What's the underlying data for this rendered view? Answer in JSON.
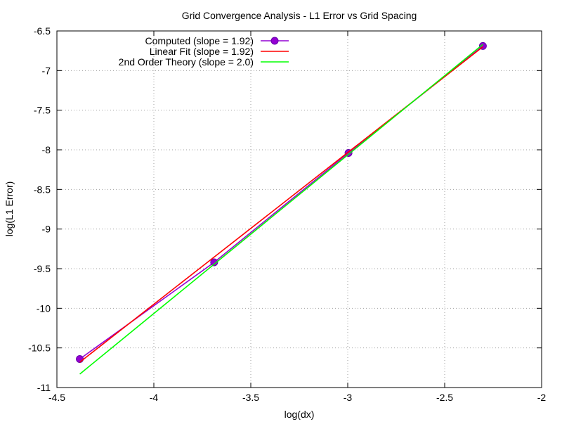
{
  "chart_data": {
    "type": "line",
    "title": "Grid Convergence Analysis - L1 Error vs Grid Spacing",
    "xlabel": "log(dx)",
    "ylabel": "log(L1 Error)",
    "xlim": [
      -4.5,
      -2
    ],
    "ylim": [
      -11,
      -6.5
    ],
    "xticks": [
      -4.5,
      -4,
      -3.5,
      -3,
      -2.5,
      -2
    ],
    "xtick_labels": [
      "-4.5",
      "-4",
      "-3.5",
      "-3",
      "-2.5",
      "-2"
    ],
    "yticks": [
      -11,
      -10.5,
      -10,
      -9.5,
      -9,
      -8.5,
      -8,
      -7.5,
      -7,
      -6.5
    ],
    "ytick_labels": [
      "-11",
      "-10.5",
      "-10",
      "-9.5",
      "-9",
      "-8.5",
      "-8",
      "-7.5",
      "-7",
      "-6.5"
    ],
    "grid": true,
    "legend_position": "top-left",
    "series": [
      {
        "name": "Computed (slope = 1.92)",
        "style": "line-points",
        "color": "#9400d3",
        "x": [
          -4.382,
          -3.689,
          -2.996,
          -2.303
        ],
        "y": [
          -10.64,
          -9.42,
          -8.04,
          -6.69
        ]
      },
      {
        "name": "Linear Fit (slope = 1.92)",
        "style": "line",
        "color": "#ff0000",
        "x": [
          -4.382,
          -2.303
        ],
        "y": [
          -10.68,
          -6.7
        ]
      },
      {
        "name": "2nd Order Theory (slope = 2.0)",
        "style": "line",
        "color": "#00ff00",
        "x": [
          -4.382,
          -2.303
        ],
        "y": [
          -10.83,
          -6.67
        ]
      }
    ]
  }
}
